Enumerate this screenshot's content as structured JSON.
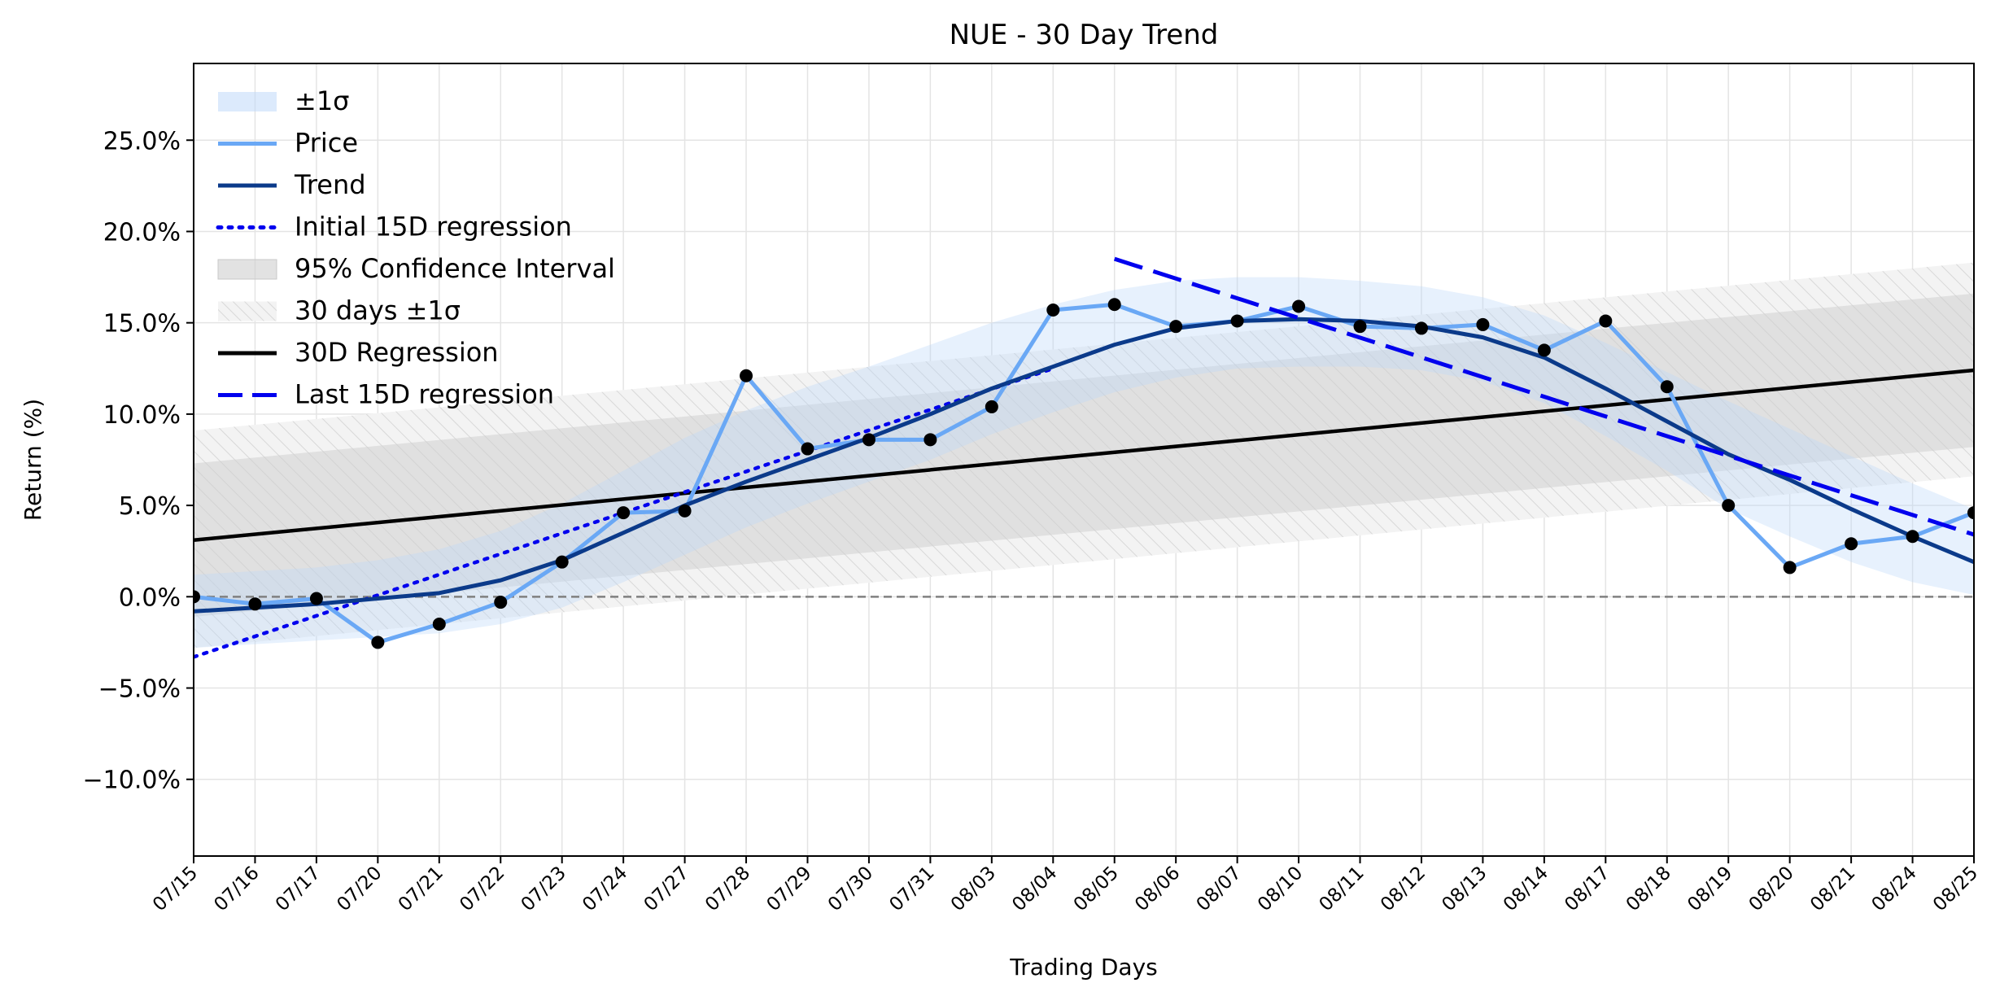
{
  "chart_data": {
    "type": "line",
    "title": "NUE - 30 Day Trend",
    "xlabel": "Trading Days",
    "ylabel": "Return (%)",
    "ylim": [
      -14.2,
      29.2
    ],
    "y_ticks": [
      -10,
      -5,
      0,
      5,
      10,
      15,
      20,
      25
    ],
    "y_tick_labels": [
      "−10.0%",
      "−5.0%",
      "0.0%",
      "5.0%",
      "10.0%",
      "15.0%",
      "20.0%",
      "25.0%"
    ],
    "categories": [
      "07/15",
      "07/16",
      "07/17",
      "07/20",
      "07/21",
      "07/22",
      "07/23",
      "07/24",
      "07/27",
      "07/28",
      "07/29",
      "07/30",
      "07/31",
      "08/03",
      "08/04",
      "08/05",
      "08/06",
      "08/07",
      "08/10",
      "08/11",
      "08/12",
      "08/13",
      "08/14",
      "08/17",
      "08/18",
      "08/19",
      "08/20",
      "08/21",
      "08/24",
      "08/25"
    ],
    "grid": true,
    "legend_position": "top-left",
    "zero_line": 0,
    "series": [
      {
        "name": "Price",
        "color": "#6aa8f5",
        "values": [
          0.0,
          -0.4,
          -0.1,
          -2.5,
          -1.5,
          -0.3,
          1.9,
          4.6,
          4.7,
          12.1,
          8.1,
          8.6,
          8.6,
          10.4,
          15.7,
          16.0,
          14.8,
          15.1,
          15.9,
          14.8,
          14.7,
          14.9,
          13.5,
          15.1,
          11.5,
          5.0,
          1.6,
          2.9,
          3.3,
          4.6
        ]
      },
      {
        "name": "Trend",
        "color": "#0b3a8a",
        "values": [
          -0.8,
          -0.6,
          -0.4,
          -0.1,
          0.2,
          0.9,
          2.0,
          3.5,
          5.0,
          6.3,
          7.5,
          8.7,
          10.0,
          11.4,
          12.6,
          13.8,
          14.7,
          15.1,
          15.2,
          15.1,
          14.8,
          14.2,
          13.1,
          11.4,
          9.6,
          7.8,
          6.4,
          4.8,
          3.3,
          1.9
        ]
      },
      {
        "name": "±1σ",
        "color": "#cfe3fb",
        "upper": [
          1.2,
          1.4,
          1.6,
          2.0,
          2.6,
          3.6,
          5.1,
          6.9,
          8.7,
          10.2,
          11.5,
          12.6,
          13.8,
          15.0,
          16.0,
          16.8,
          17.3,
          17.5,
          17.5,
          17.3,
          17.0,
          16.4,
          15.4,
          13.9,
          12.3,
          10.7,
          9.2,
          7.7,
          6.2,
          4.8
        ],
        "lower": [
          -2.8,
          -2.6,
          -2.4,
          -2.2,
          -2.0,
          -1.5,
          -0.6,
          0.8,
          2.3,
          3.8,
          5.1,
          6.3,
          7.5,
          8.9,
          10.1,
          11.2,
          12.0,
          12.5,
          12.6,
          12.6,
          12.4,
          11.8,
          10.6,
          8.8,
          6.9,
          4.8,
          3.3,
          1.9,
          0.8,
          0.1
        ]
      },
      {
        "name": "Initial 15D regression",
        "color": "#0000ee",
        "style": "dotted",
        "x_range": [
          "07/15",
          "08/04"
        ],
        "y_range": [
          -3.3,
          12.5
        ]
      },
      {
        "name": "95% Confidence Interval",
        "color": "#cccccc",
        "x_range": [
          "07/15",
          "08/25"
        ],
        "upper": [
          7.3,
          16.6
        ],
        "lower": [
          -1.1,
          8.2
        ]
      },
      {
        "name": "30 days ±1σ",
        "color": "#e8e8e8",
        "hatch": true,
        "x_range": [
          "07/15",
          "08/25"
        ],
        "upper": [
          9.1,
          18.3
        ],
        "lower": [
          -2.8,
          6.6
        ]
      },
      {
        "name": "30D Regression",
        "color": "#000000",
        "x_range": [
          "07/15",
          "08/25"
        ],
        "y_range": [
          3.1,
          12.4
        ]
      },
      {
        "name": "Last 15D regression",
        "color": "#0000ee",
        "style": "dashed",
        "x_range": [
          "08/05",
          "08/25"
        ],
        "y_range": [
          18.5,
          3.4
        ]
      }
    ],
    "legend_order": [
      "±1σ",
      "Price",
      "Trend",
      "Initial 15D regression",
      "95% Confidence Interval",
      "30 days ±1σ",
      "30D Regression",
      "Last 15D regression"
    ]
  }
}
